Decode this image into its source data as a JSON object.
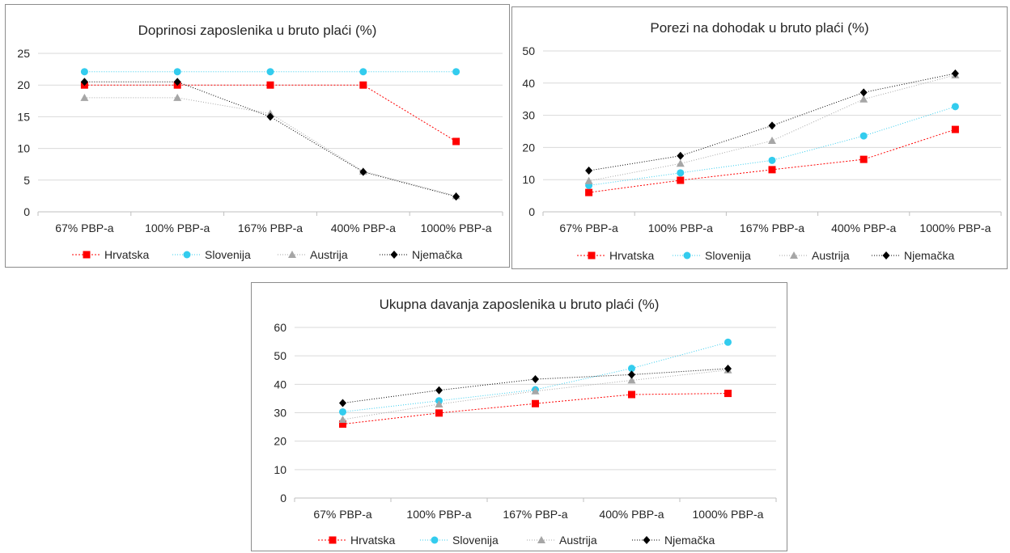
{
  "colors": {
    "Hrvatska": "#ff0000",
    "Slovenija": "#33ccee",
    "Austrija": "#a6a6a6",
    "Njemacka": "#000000"
  },
  "chart_data": [
    {
      "type": "line",
      "title": "Doprinosi zaposlenika u bruto plaći (%)",
      "categories": [
        "67% PBP-a",
        "100% PBP-a",
        "167% PBP-a",
        "400% PBP-a",
        "1000% PBP-a"
      ],
      "ylim": [
        0,
        25
      ],
      "yticks": [
        0,
        5,
        10,
        15,
        20,
        25
      ],
      "grid": true,
      "legend_position": "bottom",
      "series": [
        {
          "name": "Hrvatska",
          "marker": "square",
          "values": [
            20,
            20,
            20,
            20,
            11.1
          ]
        },
        {
          "name": "Slovenija",
          "marker": "circle",
          "values": [
            22.1,
            22.1,
            22.1,
            22.1,
            22.1
          ]
        },
        {
          "name": "Austrija",
          "marker": "triangle",
          "values": [
            18,
            18,
            15.5,
            6.4,
            2.5
          ]
        },
        {
          "name": "Njemačka",
          "marker": "diamond",
          "values": [
            20.5,
            20.5,
            15,
            6.3,
            2.4
          ]
        }
      ]
    },
    {
      "type": "line",
      "title": "Porezi na dohodak u bruto plaći (%)",
      "categories": [
        "67% PBP-a",
        "100% PBP-a",
        "167% PBP-a",
        "400% PBP-a",
        "1000% PBP-a"
      ],
      "ylim": [
        0,
        50
      ],
      "yticks": [
        0,
        10,
        20,
        30,
        40,
        50
      ],
      "grid": true,
      "legend_position": "bottom",
      "series": [
        {
          "name": "Hrvatska",
          "marker": "square",
          "values": [
            6,
            9.8,
            13.1,
            16.3,
            25.6
          ]
        },
        {
          "name": "Slovenija",
          "marker": "circle",
          "values": [
            8.2,
            12.1,
            16,
            23.6,
            32.7
          ]
        },
        {
          "name": "Austrija",
          "marker": "triangle",
          "values": [
            9.6,
            15,
            22.1,
            35,
            42.5
          ]
        },
        {
          "name": "Njemačka",
          "marker": "diamond",
          "values": [
            12.8,
            17.4,
            26.8,
            37.1,
            43
          ]
        }
      ]
    },
    {
      "type": "line",
      "title": "Ukupna davanja zaposlenika u bruto plaći (%)",
      "categories": [
        "67% PBP-a",
        "100% PBP-a",
        "167% PBP-a",
        "400% PBP-a",
        "1000% PBP-a"
      ],
      "ylim": [
        0,
        60
      ],
      "yticks": [
        0,
        10,
        20,
        30,
        40,
        50,
        60
      ],
      "grid": true,
      "legend_position": "bottom",
      "series": [
        {
          "name": "Hrvatska",
          "marker": "square",
          "values": [
            26,
            29.9,
            33.2,
            36.4,
            36.8
          ]
        },
        {
          "name": "Slovenija",
          "marker": "circle",
          "values": [
            30.3,
            34.2,
            38.1,
            45.6,
            54.8
          ]
        },
        {
          "name": "Austrija",
          "marker": "triangle",
          "values": [
            27.6,
            33,
            37.6,
            41.4,
            45
          ]
        },
        {
          "name": "Njemačka",
          "marker": "diamond",
          "values": [
            33.4,
            37.9,
            41.8,
            43.4,
            45.5
          ]
        }
      ]
    }
  ]
}
